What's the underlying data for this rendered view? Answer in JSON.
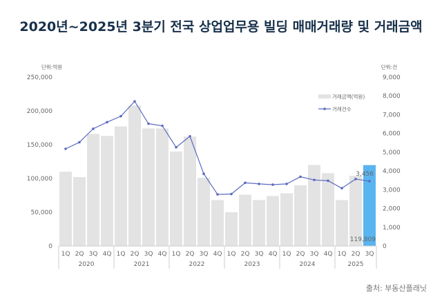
{
  "title": "2020년~2025년 3분기 전국 상업업무용 빌딩 매매거래량 및 거래금액",
  "source": "출처: 부동산플래닛",
  "chart_data": {
    "type": "bar+line",
    "title": "2020년~2025년 3분기 전국 상업업무용 빌딩 매매거래량 및 거래금액",
    "left_unit": "단위:억원",
    "right_unit": "단위:건",
    "left_ylim": [
      0,
      250000
    ],
    "left_ticks": [
      "0",
      "50,000",
      "100,000",
      "150,000",
      "200,000",
      "250,000"
    ],
    "right_ylim": [
      0,
      9000
    ],
    "right_ticks": [
      "0",
      "1,000",
      "2,000",
      "3,000",
      "4,000",
      "5,000",
      "6,000",
      "7,000",
      "8,000",
      "9,000"
    ],
    "years": [
      "2020",
      "2021",
      "2022",
      "2023",
      "2024",
      "2025"
    ],
    "year_quarters": [
      4,
      4,
      4,
      4,
      4,
      3
    ],
    "categories": [
      "1Q",
      "2Q",
      "3Q",
      "4Q",
      "1Q",
      "2Q",
      "3Q",
      "4Q",
      "1Q",
      "2Q",
      "3Q",
      "4Q",
      "1Q",
      "2Q",
      "3Q",
      "4Q",
      "1Q",
      "2Q",
      "3Q",
      "4Q",
      "1Q",
      "2Q",
      "3Q"
    ],
    "series": [
      {
        "name": "거래금액(억원)",
        "type": "bar",
        "axis": "left",
        "color": "#e3e3e3",
        "highlight_color": "#5ab4ef",
        "values": [
          110000,
          102000,
          166000,
          163000,
          177000,
          208000,
          174000,
          174000,
          140000,
          162000,
          101000,
          68000,
          50000,
          76000,
          68000,
          74000,
          78000,
          90000,
          120000,
          108000,
          68000,
          104000,
          119809
        ]
      },
      {
        "name": "거래건수",
        "type": "line",
        "axis": "right",
        "color": "#5b6abf",
        "values": [
          5180,
          5530,
          6250,
          6600,
          6920,
          7710,
          6520,
          6410,
          5260,
          5850,
          3850,
          2750,
          2770,
          3370,
          3310,
          3270,
          3310,
          3690,
          3520,
          3480,
          3080,
          3570,
          3456
        ]
      }
    ],
    "data_labels": {
      "last_bar": "119,809",
      "last_point": "3,456"
    },
    "legend_position": "top-right",
    "grid": false
  }
}
